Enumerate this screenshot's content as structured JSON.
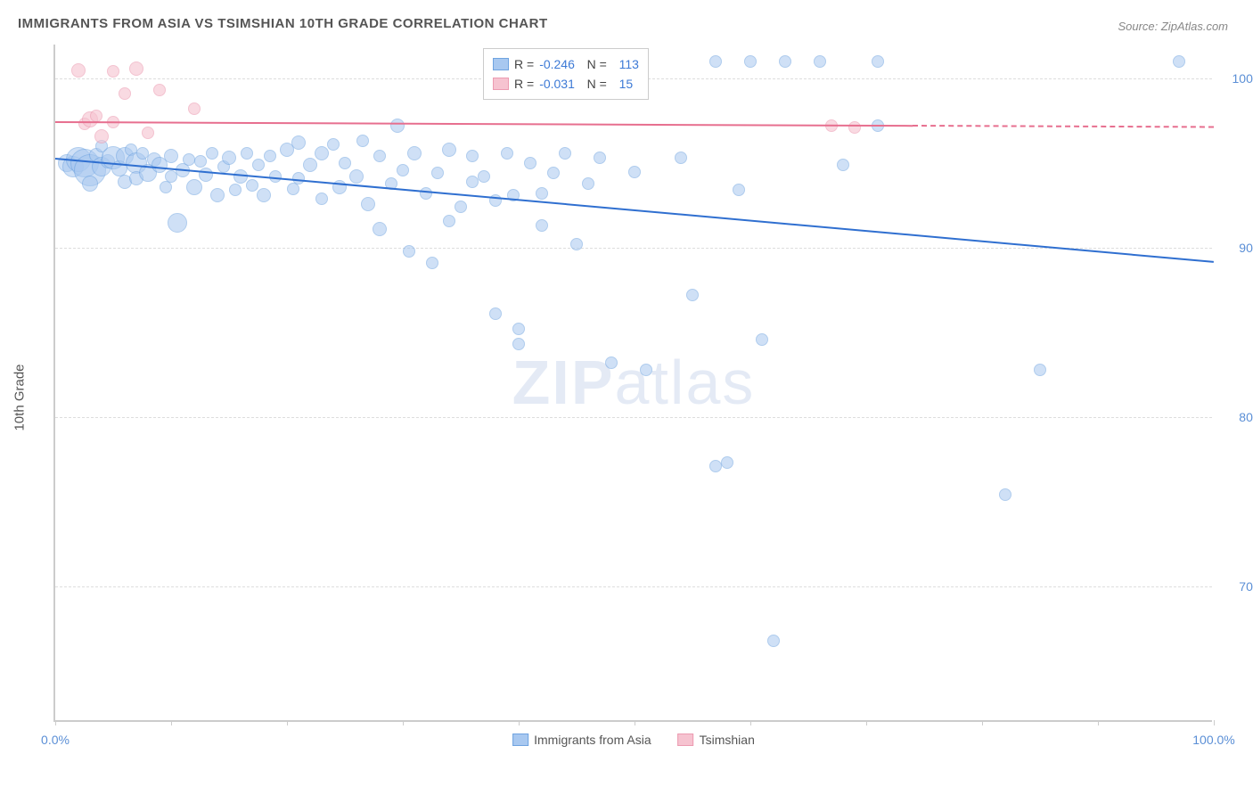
{
  "title": "IMMIGRANTS FROM ASIA VS TSIMSHIAN 10TH GRADE CORRELATION CHART",
  "source": "Source: ZipAtlas.com",
  "y_axis_label": "10th Grade",
  "watermark": {
    "part1": "ZIP",
    "part2": "atlas"
  },
  "chart": {
    "type": "scatter",
    "background_color": "#ffffff",
    "grid_color": "#dddddd",
    "axis_color": "#cccccc",
    "xlim": [
      0,
      100
    ],
    "ylim": [
      62,
      102
    ],
    "y_ticks": [
      70,
      80,
      90,
      100
    ],
    "y_tick_labels": [
      "70.0%",
      "80.0%",
      "90.0%",
      "100.0%"
    ],
    "x_ticks": [
      0,
      10,
      20,
      30,
      40,
      50,
      60,
      70,
      80,
      90,
      100
    ],
    "x_tick_labels_shown": {
      "0": "0.0%",
      "100": "100.0%"
    },
    "series": [
      {
        "name": "Immigrants from Asia",
        "color_fill": "#a8c8f0",
        "color_stroke": "#6fa3e0",
        "fill_opacity": 0.55,
        "trend_color": "#2f6fd0",
        "trend": {
          "x1": 0,
          "y1": 95.3,
          "x2": 100,
          "y2": 89.2,
          "dash_from_x": null
        },
        "R": "-0.246",
        "N": "113",
        "points": [
          {
            "x": 1,
            "y": 95,
            "r": 10
          },
          {
            "x": 1.5,
            "y": 94.8,
            "r": 12
          },
          {
            "x": 2,
            "y": 95.2,
            "r": 14
          },
          {
            "x": 2.5,
            "y": 95,
            "r": 16
          },
          {
            "x": 3,
            "y": 94.6,
            "r": 18
          },
          {
            "x": 3,
            "y": 93.8,
            "r": 9
          },
          {
            "x": 3.5,
            "y": 95.5,
            "r": 8
          },
          {
            "x": 4,
            "y": 94.8,
            "r": 11
          },
          {
            "x": 4,
            "y": 96,
            "r": 7
          },
          {
            "x": 4.5,
            "y": 95.1,
            "r": 8
          },
          {
            "x": 5,
            "y": 95.3,
            "r": 13
          },
          {
            "x": 5.5,
            "y": 94.7,
            "r": 9
          },
          {
            "x": 6,
            "y": 95.4,
            "r": 10
          },
          {
            "x": 6,
            "y": 93.9,
            "r": 8
          },
          {
            "x": 6.5,
            "y": 95.8,
            "r": 7
          },
          {
            "x": 7,
            "y": 95,
            "r": 12
          },
          {
            "x": 7,
            "y": 94.1,
            "r": 8
          },
          {
            "x": 7.5,
            "y": 95.6,
            "r": 7
          },
          {
            "x": 8,
            "y": 94.4,
            "r": 10
          },
          {
            "x": 8.5,
            "y": 95.2,
            "r": 8
          },
          {
            "x": 9,
            "y": 94.9,
            "r": 9
          },
          {
            "x": 9.5,
            "y": 93.6,
            "r": 7
          },
          {
            "x": 10,
            "y": 95.4,
            "r": 8
          },
          {
            "x": 10,
            "y": 94.2,
            "r": 7
          },
          {
            "x": 10.5,
            "y": 91.5,
            "r": 11
          },
          {
            "x": 11,
            "y": 94.6,
            "r": 8
          },
          {
            "x": 11.5,
            "y": 95.2,
            "r": 7
          },
          {
            "x": 12,
            "y": 93.6,
            "r": 9
          },
          {
            "x": 12.5,
            "y": 95.1,
            "r": 7
          },
          {
            "x": 13,
            "y": 94.3,
            "r": 8
          },
          {
            "x": 13.5,
            "y": 95.6,
            "r": 7
          },
          {
            "x": 14,
            "y": 93.1,
            "r": 8
          },
          {
            "x": 14.5,
            "y": 94.8,
            "r": 7
          },
          {
            "x": 15,
            "y": 95.3,
            "r": 8
          },
          {
            "x": 15.5,
            "y": 93.4,
            "r": 7
          },
          {
            "x": 16,
            "y": 94.2,
            "r": 8
          },
          {
            "x": 16.5,
            "y": 95.6,
            "r": 7
          },
          {
            "x": 17,
            "y": 93.7,
            "r": 7
          },
          {
            "x": 17.5,
            "y": 94.9,
            "r": 7
          },
          {
            "x": 18,
            "y": 93.1,
            "r": 8
          },
          {
            "x": 18.5,
            "y": 95.4,
            "r": 7
          },
          {
            "x": 19,
            "y": 94.2,
            "r": 7
          },
          {
            "x": 20,
            "y": 95.8,
            "r": 8
          },
          {
            "x": 20.5,
            "y": 93.5,
            "r": 7
          },
          {
            "x": 21,
            "y": 96.2,
            "r": 8
          },
          {
            "x": 21,
            "y": 94.1,
            "r": 7
          },
          {
            "x": 22,
            "y": 94.9,
            "r": 8
          },
          {
            "x": 23,
            "y": 95.6,
            "r": 8
          },
          {
            "x": 23,
            "y": 92.9,
            "r": 7
          },
          {
            "x": 24,
            "y": 96.1,
            "r": 7
          },
          {
            "x": 24.5,
            "y": 93.6,
            "r": 8
          },
          {
            "x": 25,
            "y": 95,
            "r": 7
          },
          {
            "x": 26,
            "y": 94.2,
            "r": 8
          },
          {
            "x": 26.5,
            "y": 96.3,
            "r": 7
          },
          {
            "x": 27,
            "y": 92.6,
            "r": 8
          },
          {
            "x": 28,
            "y": 95.4,
            "r": 7
          },
          {
            "x": 28,
            "y": 91.1,
            "r": 8
          },
          {
            "x": 29,
            "y": 93.8,
            "r": 7
          },
          {
            "x": 29.5,
            "y": 97.2,
            "r": 8
          },
          {
            "x": 30,
            "y": 94.6,
            "r": 7
          },
          {
            "x": 30.5,
            "y": 89.8,
            "r": 7
          },
          {
            "x": 31,
            "y": 95.6,
            "r": 8
          },
          {
            "x": 32,
            "y": 93.2,
            "r": 7
          },
          {
            "x": 32.5,
            "y": 89.1,
            "r": 7
          },
          {
            "x": 33,
            "y": 94.4,
            "r": 7
          },
          {
            "x": 34,
            "y": 95.8,
            "r": 8
          },
          {
            "x": 34,
            "y": 91.6,
            "r": 7
          },
          {
            "x": 35,
            "y": 92.4,
            "r": 7
          },
          {
            "x": 36,
            "y": 93.9,
            "r": 7
          },
          {
            "x": 36,
            "y": 95.4,
            "r": 7
          },
          {
            "x": 37,
            "y": 94.2,
            "r": 7
          },
          {
            "x": 38,
            "y": 92.8,
            "r": 7
          },
          {
            "x": 38,
            "y": 86.1,
            "r": 7
          },
          {
            "x": 39,
            "y": 95.6,
            "r": 7
          },
          {
            "x": 39.5,
            "y": 93.1,
            "r": 7
          },
          {
            "x": 40,
            "y": 85.2,
            "r": 7
          },
          {
            "x": 40,
            "y": 84.3,
            "r": 7
          },
          {
            "x": 41,
            "y": 95,
            "r": 7
          },
          {
            "x": 42,
            "y": 93.2,
            "r": 7
          },
          {
            "x": 42,
            "y": 91.3,
            "r": 7
          },
          {
            "x": 43,
            "y": 94.4,
            "r": 7
          },
          {
            "x": 44,
            "y": 95.6,
            "r": 7
          },
          {
            "x": 45,
            "y": 90.2,
            "r": 7
          },
          {
            "x": 46,
            "y": 93.8,
            "r": 7
          },
          {
            "x": 47,
            "y": 95.3,
            "r": 7
          },
          {
            "x": 48,
            "y": 83.2,
            "r": 7
          },
          {
            "x": 50,
            "y": 101,
            "r": 7
          },
          {
            "x": 50,
            "y": 94.5,
            "r": 7
          },
          {
            "x": 51,
            "y": 82.8,
            "r": 7
          },
          {
            "x": 54,
            "y": 95.3,
            "r": 7
          },
          {
            "x": 55,
            "y": 87.2,
            "r": 7
          },
          {
            "x": 57,
            "y": 101,
            "r": 7
          },
          {
            "x": 57,
            "y": 77.1,
            "r": 7
          },
          {
            "x": 58,
            "y": 77.3,
            "r": 7
          },
          {
            "x": 59,
            "y": 93.4,
            "r": 7
          },
          {
            "x": 60,
            "y": 101,
            "r": 7
          },
          {
            "x": 61,
            "y": 84.6,
            "r": 7
          },
          {
            "x": 62,
            "y": 66.8,
            "r": 7
          },
          {
            "x": 63,
            "y": 101,
            "r": 7
          },
          {
            "x": 66,
            "y": 101,
            "r": 7
          },
          {
            "x": 68,
            "y": 94.9,
            "r": 7
          },
          {
            "x": 71,
            "y": 101,
            "r": 7
          },
          {
            "x": 71,
            "y": 97.2,
            "r": 7
          },
          {
            "x": 82,
            "y": 75.4,
            "r": 7
          },
          {
            "x": 85,
            "y": 82.8,
            "r": 7
          },
          {
            "x": 97,
            "y": 101,
            "r": 7
          }
        ]
      },
      {
        "name": "Tsimshian",
        "color_fill": "#f6c3d0",
        "color_stroke": "#ec9bb1",
        "fill_opacity": 0.6,
        "trend_color": "#e76f8f",
        "trend": {
          "x1": 0,
          "y1": 97.5,
          "x2": 100,
          "y2": 97.2,
          "dash_from_x": 74
        },
        "R": "-0.031",
        "N": "15",
        "points": [
          {
            "x": 2,
            "y": 100.5,
            "r": 8
          },
          {
            "x": 2.5,
            "y": 97.3,
            "r": 7
          },
          {
            "x": 3,
            "y": 97.6,
            "r": 9
          },
          {
            "x": 3.5,
            "y": 97.8,
            "r": 7
          },
          {
            "x": 4,
            "y": 96.6,
            "r": 8
          },
          {
            "x": 5,
            "y": 100.4,
            "r": 7
          },
          {
            "x": 5,
            "y": 97.4,
            "r": 7
          },
          {
            "x": 6,
            "y": 99.1,
            "r": 7
          },
          {
            "x": 7,
            "y": 100.6,
            "r": 8
          },
          {
            "x": 8,
            "y": 96.8,
            "r": 7
          },
          {
            "x": 9,
            "y": 99.3,
            "r": 7
          },
          {
            "x": 12,
            "y": 98.2,
            "r": 7
          },
          {
            "x": 67,
            "y": 97.2,
            "r": 7
          },
          {
            "x": 69,
            "y": 97.1,
            "r": 7
          }
        ]
      }
    ]
  },
  "legend_top": {
    "label_R": "R =",
    "label_N": "N ="
  },
  "legend_bottom": [
    {
      "label": "Immigrants from Asia",
      "fill": "#a8c8f0",
      "stroke": "#6fa3e0"
    },
    {
      "label": "Tsimshian",
      "fill": "#f6c3d0",
      "stroke": "#ec9bb1"
    }
  ]
}
